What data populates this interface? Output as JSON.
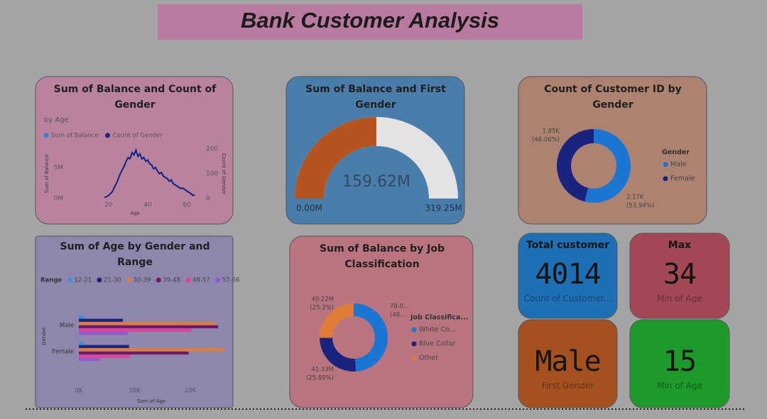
{
  "title": "Bank Customer Analysis",
  "chart_data": [
    {
      "type": "line",
      "title": "Sum of Balance and Count of Gender",
      "subtitle": "by Age",
      "x": [
        18,
        19,
        20,
        21,
        22,
        23,
        24,
        25,
        26,
        27,
        28,
        29,
        30,
        31,
        32,
        33,
        34,
        35,
        36,
        37,
        38,
        39,
        40,
        41,
        42,
        43,
        44,
        45,
        46,
        47,
        48,
        49,
        50,
        51,
        52,
        53,
        54,
        55,
        56,
        57,
        58,
        59,
        60,
        61,
        62,
        63,
        64
      ],
      "series": [
        {
          "name": "Sum of Balance",
          "color": "#2f7fd6",
          "values": [
            150000,
            330000,
            470000,
            820000,
            1100000,
            1850000,
            2350000,
            3250000,
            3950000,
            4650000,
            5150000,
            6050000,
            6550000,
            6450000,
            7350000,
            7050000,
            7700000,
            6850000,
            7200000,
            6350000,
            6650000,
            5950000,
            6250000,
            5550000,
            5450000,
            4750000,
            5050000,
            4350000,
            4050000,
            4150000,
            3650000,
            3350000,
            3250000,
            2750000,
            3050000,
            2450000,
            2150000,
            2050000,
            1750000,
            1650000,
            1650000,
            1450000,
            1150000,
            1050000,
            750000,
            500000,
            600000
          ]
        },
        {
          "name": "Count of Gender",
          "color": "#1a237e",
          "axis": "y2",
          "values": [
            4,
            8,
            12,
            20,
            28,
            45,
            60,
            80,
            100,
            115,
            130,
            150,
            165,
            160,
            185,
            175,
            195,
            170,
            180,
            160,
            165,
            150,
            155,
            140,
            135,
            120,
            125,
            110,
            100,
            105,
            90,
            85,
            80,
            70,
            75,
            60,
            55,
            50,
            45,
            40,
            42,
            35,
            30,
            25,
            20,
            12,
            15
          ]
        }
      ],
      "xlim": [
        15,
        65
      ],
      "xticks": [
        20,
        40,
        60
      ],
      "ylim": [
        0,
        8000000
      ],
      "yticks": [
        {
          "value": 0,
          "label": "0M"
        },
        {
          "value": 5000000,
          "label": "5M"
        }
      ],
      "y2lim": [
        0,
        200
      ],
      "y2ticks": [
        0,
        100,
        200
      ],
      "xlabel": "Age",
      "ylabel": "Sum of Balance",
      "y2label": "Count of Gender",
      "legend": "top-left"
    },
    {
      "type": "gauge",
      "title": "Sum of Balance and First Gender",
      "values": [
        159.62
      ],
      "value_labels": [
        "159.62M"
      ],
      "ylim": [
        0,
        319.25
      ],
      "yticks": [
        {
          "value": 0,
          "label": "0.00M"
        },
        {
          "value": 319.25,
          "label": "319.25M"
        }
      ],
      "color": "#b5541f",
      "track_color": "#e3e3e3"
    },
    {
      "type": "donut",
      "title": "Count of Customer ID by Gender",
      "legend_title": "Gender",
      "categories": [
        "Male",
        "Female"
      ],
      "values": [
        2165,
        1849
      ],
      "value_labels": [
        "2.17K",
        "1.85K"
      ],
      "percent_labels": [
        "(53.94%)",
        "(46.06%)"
      ],
      "colors": [
        "#1976d2",
        "#1a237e"
      ],
      "legend": "right"
    },
    {
      "type": "hbar",
      "title": "Sum of Age by Gender and Range",
      "legend_title": "Range",
      "categories": [
        "Male",
        "Female"
      ],
      "series": [
        {
          "name": "12-21",
          "color": "#3a8de0",
          "values": [
            900,
            800
          ]
        },
        {
          "name": "21-30",
          "color": "#1a237e",
          "values": [
            7900,
            9000
          ]
        },
        {
          "name": "30-39",
          "color": "#e07b39",
          "values": [
            24500,
            26100
          ]
        },
        {
          "name": "39-48",
          "color": "#6a1b6a",
          "values": [
            25000,
            19700
          ]
        },
        {
          "name": "48-57",
          "color": "#e0409a",
          "values": [
            20200,
            9200
          ]
        },
        {
          "name": "57-66",
          "color": "#8e5bd0",
          "values": [
            8800,
            3700
          ]
        }
      ],
      "xlim": [
        0,
        27000
      ],
      "xticks": [
        {
          "value": 0,
          "label": "0K"
        },
        {
          "value": 10000,
          "label": "10K"
        },
        {
          "value": 20000,
          "label": "20K"
        }
      ],
      "xlabel": "Sum of Age",
      "ylabel": "Gender",
      "legend": "top-left"
    },
    {
      "type": "donut",
      "title": "Sum of Balance by Job Classification",
      "legend_title": "Job Classifica...",
      "categories": [
        "White Co...",
        "Blue Collar",
        "Other"
      ],
      "values": [
        78.07,
        41.33,
        40.22
      ],
      "value_labels": [
        "78.0...",
        "41.33M",
        "40.22M"
      ],
      "percent_labels": [
        "(48...",
        "(25.89%)",
        "(25.2%)"
      ],
      "colors": [
        "#1976d2",
        "#1a237e",
        "#e07b39"
      ],
      "legend": "right"
    }
  ],
  "cards": [
    {
      "title": "Total customer",
      "value": 4014,
      "label": "Count of Customer..."
    },
    {
      "title": "Max",
      "value": 34,
      "label": "Min of Age"
    },
    {
      "value": "Male",
      "label": "First Gender"
    },
    {
      "value": 15,
      "label": "Min of Age"
    }
  ]
}
